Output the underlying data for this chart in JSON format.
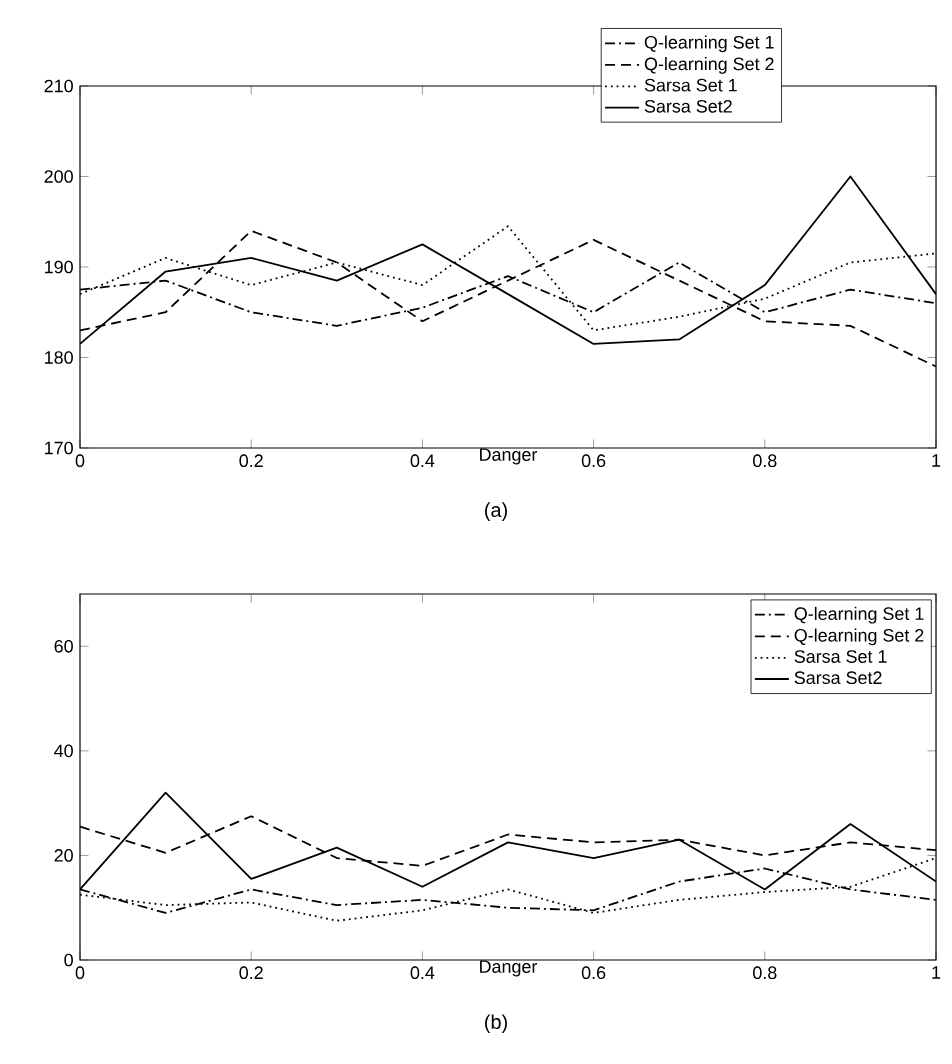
{
  "chart_data": [
    {
      "type": "line",
      "xlabel": "Danger",
      "annotations": [
        "(a)"
      ],
      "x": [
        0,
        0.1,
        0.2,
        0.3,
        0.4,
        0.5,
        0.6,
        0.7,
        0.8,
        0.9,
        1
      ],
      "xlim": [
        0,
        1
      ],
      "ylim": [
        170,
        210
      ],
      "xticks": [
        0,
        0.2,
        0.4,
        0.6,
        0.8,
        1
      ],
      "yticks": [
        170,
        180,
        190,
        200,
        210
      ],
      "legend": "top right",
      "series": [
        {
          "name": "Q-learning Set 1",
          "color": "#000000",
          "line_style": "dashdot",
          "values": [
            187.5,
            188.5,
            185,
            183.5,
            185.5,
            189,
            185,
            190.5,
            185,
            187.5,
            186
          ]
        },
        {
          "name": "Q-learning Set 2",
          "color": "#000000",
          "line_style": "dashed",
          "values": [
            183,
            185,
            194,
            190.5,
            184,
            188.5,
            193,
            188.5,
            184,
            183.5,
            179
          ]
        },
        {
          "name": "Sarsa Set 1",
          "color": "#000000",
          "line_style": "dotted",
          "values": [
            187,
            191,
            188,
            190.5,
            188,
            194.5,
            183,
            184.5,
            186.5,
            190.5,
            191.5
          ]
        },
        {
          "name": "Sarsa Set2",
          "color": "#000000",
          "line_style": "solid",
          "values": [
            181.5,
            189.5,
            191,
            188.5,
            192.5,
            187,
            181.5,
            182,
            188,
            200,
            187
          ]
        }
      ]
    },
    {
      "type": "line",
      "xlabel": "Danger",
      "annotations": [
        "(b)"
      ],
      "x": [
        0,
        0.1,
        0.2,
        0.3,
        0.4,
        0.5,
        0.6,
        0.7,
        0.8,
        0.9,
        1
      ],
      "xlim": [
        0,
        1
      ],
      "ylim": [
        0,
        70
      ],
      "xticks": [
        0,
        0.2,
        0.4,
        0.6,
        0.8,
        1
      ],
      "yticks": [
        0,
        20,
        40,
        60
      ],
      "legend": "top right",
      "series": [
        {
          "name": "Q-learning Set 1",
          "color": "#000000",
          "line_style": "dashdot",
          "values": [
            13.5,
            9,
            13.5,
            10.5,
            11.5,
            10,
            9.5,
            15,
            17.5,
            13.5,
            11.5
          ]
        },
        {
          "name": "Q-learning Set 2",
          "color": "#000000",
          "line_style": "dashed",
          "values": [
            25.5,
            20.5,
            27.5,
            19.5,
            18,
            24,
            22.5,
            23,
            20,
            22.5,
            21
          ]
        },
        {
          "name": "Sarsa Set 1",
          "color": "#000000",
          "line_style": "dotted",
          "values": [
            12.5,
            10.5,
            11,
            7.5,
            9.5,
            13.5,
            9,
            11.5,
            13,
            14,
            19.5
          ]
        },
        {
          "name": "Sarsa Set2",
          "color": "#000000",
          "line_style": "solid",
          "values": [
            13.5,
            32,
            15.5,
            21.5,
            14,
            22.5,
            19.5,
            23,
            13.5,
            26,
            15
          ]
        }
      ]
    }
  ]
}
